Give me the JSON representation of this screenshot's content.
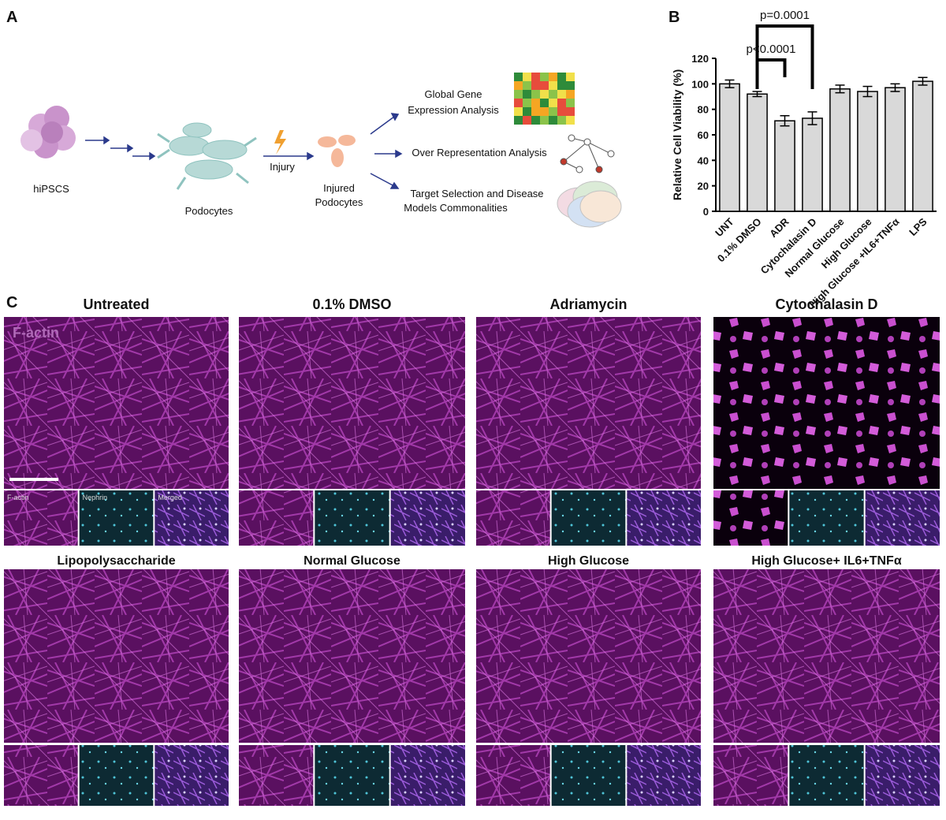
{
  "panel_labels": [
    "A",
    "B",
    "C"
  ],
  "panel_a": {
    "source": "hiPSCS",
    "differentiated": "Podocytes",
    "injury": "Injury",
    "injured": [
      "Injured",
      "Podocytes"
    ],
    "analyses": [
      [
        "Global Gene",
        "Expression Analysis"
      ],
      [
        "Over Representation Analysis"
      ],
      [
        "Target Selection and Disease",
        "Models Commonalities"
      ]
    ]
  },
  "chart_data": {
    "type": "bar",
    "y_label": "Relative Cell Viability (%)",
    "categories": [
      "UNT",
      "0.1% DMSO",
      "ADR",
      "Cytochalasin D",
      "Normal Glucose",
      "High Glucose",
      "High Glucose +IL6+TNFα",
      "LPS"
    ],
    "values": [
      100,
      92,
      71,
      73,
      96,
      94,
      97,
      102
    ],
    "errors": [
      3,
      2,
      4,
      5,
      3,
      4,
      3,
      3
    ],
    "color": "#d9d9d9",
    "ylim": [
      0,
      120
    ],
    "yticks": [
      0,
      20,
      40,
      60,
      80,
      100,
      120
    ],
    "annotations": [
      "p<0.0001",
      "p=0.0001"
    ]
  },
  "panel_c": {
    "channel_label": "F-actin",
    "strip_labels": [
      "F-actin",
      "Nephrin",
      "Merged"
    ],
    "panels": [
      {
        "title": "Untreated"
      },
      {
        "title": "0.1% DMSO"
      },
      {
        "title": "Adriamycin"
      },
      {
        "title": "Cytochalasin D"
      },
      {
        "title": "Lipopolysaccharide"
      },
      {
        "title": "Normal Glucose"
      },
      {
        "title": "High Glucose"
      },
      {
        "title": "High Glucose+ IL6+TNFα"
      }
    ]
  }
}
